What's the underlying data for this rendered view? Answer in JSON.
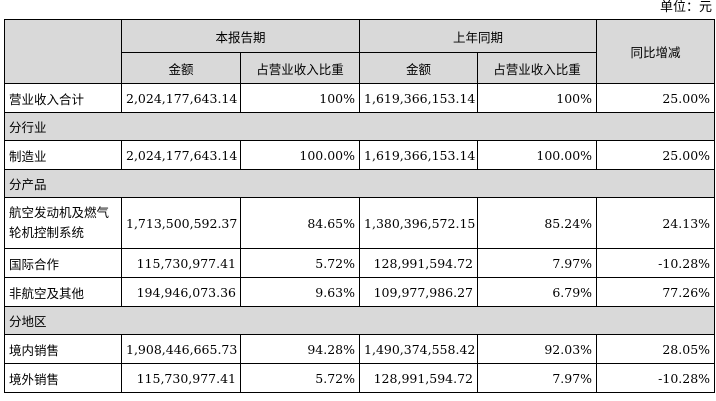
{
  "unit_label": "单位：元",
  "header": {
    "current_period": "本报告期",
    "prior_period": "上年同期",
    "yoy_change": "同比增减",
    "amount": "金额",
    "revenue_share": "占营业收入比重"
  },
  "total": {
    "label": "营业收入合计",
    "current_amount": "2,024,177,643.14",
    "current_share": "100%",
    "prior_amount": "1,619,366,153.14",
    "prior_share": "100%",
    "change": "25.00%"
  },
  "sections": [
    {
      "title": "分行业",
      "rows": [
        {
          "label": "制造业",
          "current_amount": "2,024,177,643.14",
          "current_share": "100.00%",
          "prior_amount": "1,619,366,153.14",
          "prior_share": "100.00%",
          "change": "25.00%"
        }
      ]
    },
    {
      "title": "分产品",
      "rows": [
        {
          "label": "航空发动机及燃气轮机控制系统",
          "current_amount": "1,713,500,592.37",
          "current_share": "84.65%",
          "prior_amount": "1,380,396,572.15",
          "prior_share": "85.24%",
          "change": "24.13%"
        },
        {
          "label": "国际合作",
          "current_amount": "115,730,977.41",
          "current_share": "5.72%",
          "prior_amount": "128,991,594.72",
          "prior_share": "7.97%",
          "change": "-10.28%"
        },
        {
          "label": "非航空及其他",
          "current_amount": "194,946,073.36",
          "current_share": "9.63%",
          "prior_amount": "109,977,986.27",
          "prior_share": "6.79%",
          "change": "77.26%"
        }
      ]
    },
    {
      "title": "分地区",
      "rows": [
        {
          "label": "境内销售",
          "current_amount": "1,908,446,665.73",
          "current_share": "94.28%",
          "prior_amount": "1,490,374,558.42",
          "prior_share": "92.03%",
          "change": "28.05%"
        },
        {
          "label": "境外销售",
          "current_amount": "115,730,977.41",
          "current_share": "5.72%",
          "prior_amount": "128,991,594.72",
          "prior_share": "7.97%",
          "change": "-10.28%"
        }
      ]
    }
  ]
}
